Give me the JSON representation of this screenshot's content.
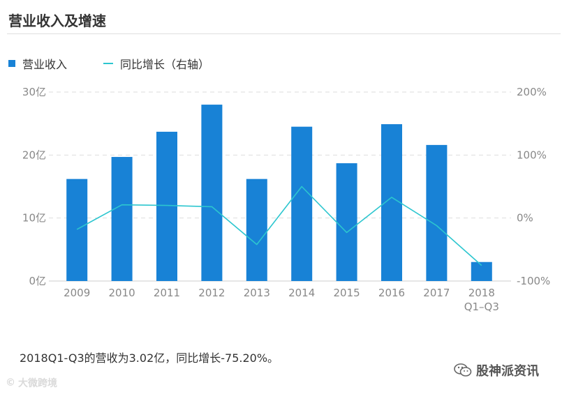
{
  "page": {
    "title": "营业收入及增速"
  },
  "colors": {
    "bar": "#1882d6",
    "line": "#2cc6cf",
    "grid": "#dddddd",
    "axis_text": "#888888"
  },
  "chart_data": {
    "type": "bar",
    "categories": [
      "2009",
      "2010",
      "2011",
      "2012",
      "2013",
      "2014",
      "2015",
      "2016",
      "2017",
      "2018"
    ],
    "category_sublabels": [
      "",
      "",
      "",
      "",
      "",
      "",
      "",
      "",
      "",
      "Q1–Q3"
    ],
    "series": [
      {
        "name": "营业收入",
        "type": "bar",
        "axis": "left",
        "values": [
          16.2,
          19.7,
          23.7,
          28.0,
          16.2,
          24.5,
          18.7,
          24.9,
          21.6,
          3.02
        ]
      },
      {
        "name": "同比增长（右轴）",
        "type": "line",
        "axis": "right",
        "values": [
          -18,
          21,
          20,
          18,
          -42,
          50,
          -23,
          33,
          -12,
          -75.2
        ]
      }
    ],
    "y_left": {
      "min": 0,
      "max": 30,
      "tick_labels": [
        "0亿",
        "10亿",
        "20亿",
        "30亿"
      ]
    },
    "y_right": {
      "min": -100,
      "max": 200,
      "tick_labels": [
        "-100%",
        "0%",
        "100%",
        "200%"
      ]
    },
    "grid": true,
    "legend_position": "top-left"
  },
  "summary": "2018Q1-Q3的营收为3.02亿，同比增长-75.20%。",
  "watermark_left": {
    "icon": "weibo-icon",
    "text": "大微跨境"
  },
  "watermark_right": {
    "icon": "wechat-icon",
    "text": "股神派资讯"
  }
}
